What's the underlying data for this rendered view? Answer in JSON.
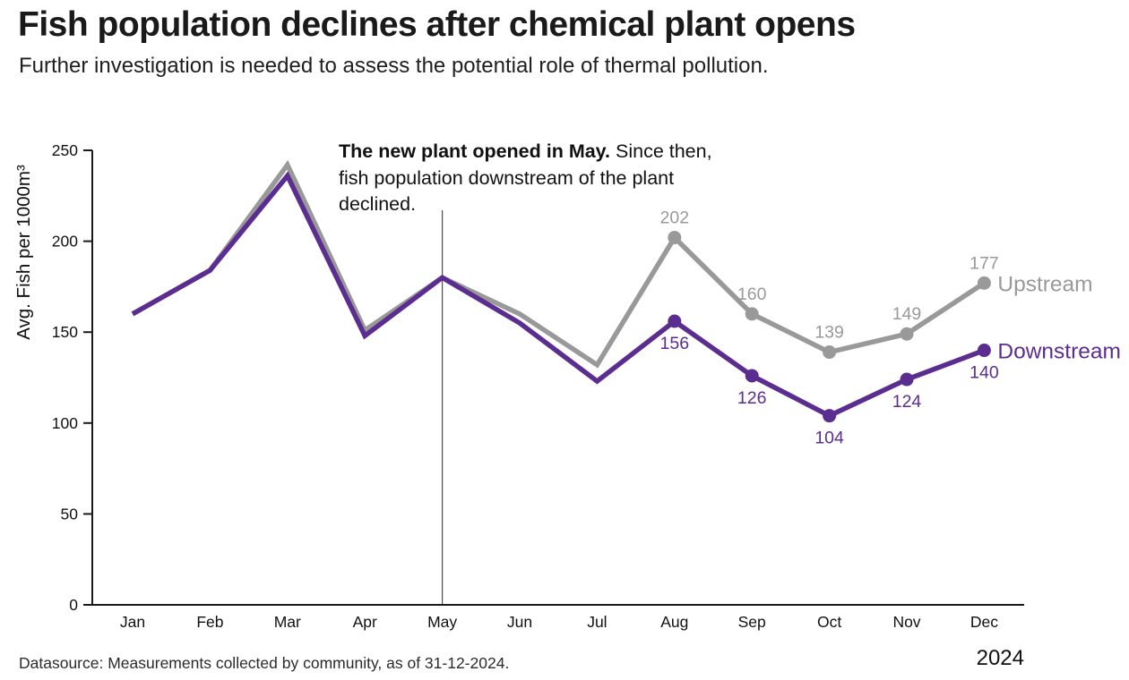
{
  "header": {
    "title": "Fish population declines after chemical plant opens",
    "subtitle": "Further investigation is needed to assess the potential role of thermal pollution."
  },
  "annotation": {
    "line1_bold": "The new plant opened in May.",
    "line1_rest": " Since then,",
    "line2": "fish population downstream of the plant",
    "line3": "declined."
  },
  "footer": {
    "datasource": "Datasource: Measurements collected by community, as of 31-12-2024.",
    "year": "2024"
  },
  "colors": {
    "upstream": "#999999",
    "downstream": "#5b2d91",
    "axis": "#1a1a1a",
    "annotation_line": "#4d4d4d"
  },
  "chart_data": {
    "type": "line",
    "title": "Fish population declines after chemical plant opens",
    "x": [
      "Jan",
      "Feb",
      "Mar",
      "Apr",
      "May",
      "Jun",
      "Jul",
      "Aug",
      "Sep",
      "Oct",
      "Nov",
      "Dec"
    ],
    "series": [
      {
        "name": "Upstream",
        "color": "#999999",
        "values": [
          160,
          184,
          242,
          151,
          180,
          160,
          132,
          202,
          160,
          139,
          149,
          177
        ],
        "labeled_from": 7
      },
      {
        "name": "Downstream",
        "color": "#5b2d91",
        "values": [
          160,
          184,
          236,
          148,
          180,
          155,
          123,
          156,
          126,
          104,
          124,
          140
        ],
        "labeled_from": 7
      }
    ],
    "ylabel": "Avg. Fish per 1000m³",
    "ylim": [
      0,
      250
    ],
    "yticks": [
      0,
      50,
      100,
      150,
      200,
      250
    ],
    "grid": false,
    "legend_position": "end-of-line",
    "annotation_month": "May",
    "xlabel": ""
  }
}
